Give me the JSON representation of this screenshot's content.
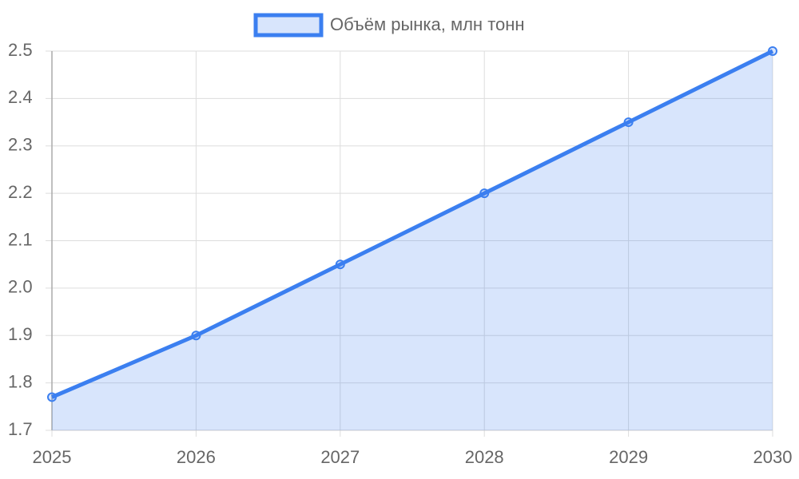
{
  "chart_data": {
    "type": "line",
    "categories": [
      "2025",
      "2026",
      "2027",
      "2028",
      "2029",
      "2030"
    ],
    "series": [
      {
        "name": "Объём рынка, млн тонн",
        "color": "#3b7ff0",
        "fill": "rgba(59,127,240,0.2)",
        "values": [
          1.77,
          1.9,
          2.05,
          2.2,
          2.35,
          2.5
        ]
      }
    ],
    "ylim": [
      1.7,
      2.5
    ],
    "yticks": [
      1.7,
      1.8,
      1.9,
      {
        "value": 2,
        "label": "2.0"
      },
      2.1,
      2.2,
      2.3,
      2.4,
      2.5
    ],
    "grid": true,
    "legend": "top"
  }
}
